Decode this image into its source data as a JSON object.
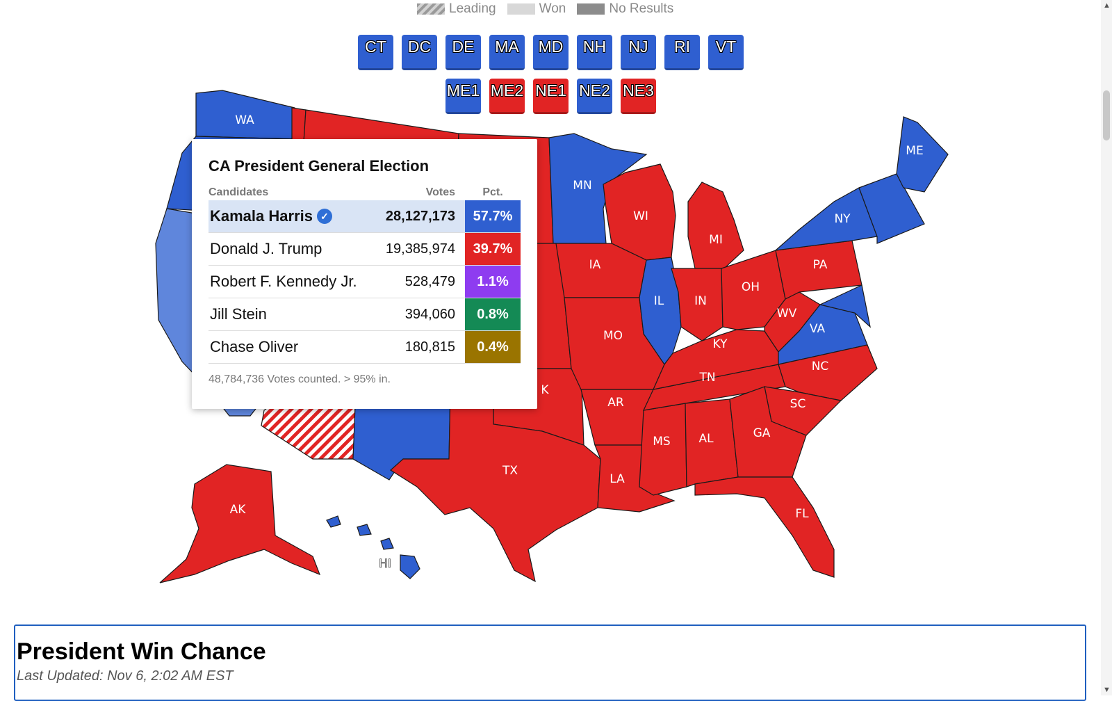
{
  "legend": {
    "leading": "Leading",
    "won": "Won",
    "no_results": "No Results"
  },
  "buttons_row1": [
    {
      "label": "CT",
      "party": "blue"
    },
    {
      "label": "DC",
      "party": "blue"
    },
    {
      "label": "DE",
      "party": "blue"
    },
    {
      "label": "MA",
      "party": "blue"
    },
    {
      "label": "MD",
      "party": "blue"
    },
    {
      "label": "NH",
      "party": "blue"
    },
    {
      "label": "NJ",
      "party": "blue"
    },
    {
      "label": "RI",
      "party": "blue"
    },
    {
      "label": "VT",
      "party": "blue"
    }
  ],
  "buttons_row2": [
    {
      "label": "ME1",
      "party": "blue"
    },
    {
      "label": "ME2",
      "party": "red"
    },
    {
      "label": "NE1",
      "party": "red"
    },
    {
      "label": "NE2",
      "party": "blue"
    },
    {
      "label": "NE3",
      "party": "red"
    }
  ],
  "map_labels": {
    "WA": "WA",
    "MN": "MN",
    "WI": "WI",
    "MI": "MI",
    "IA": "IA",
    "IL": "IL",
    "IN": "IN",
    "OH": "OH",
    "PA": "PA",
    "NY": "NY",
    "ME": "ME",
    "WV": "WV",
    "VA": "VA",
    "KY": "KY",
    "MO": "MO",
    "TN": "TN",
    "NC": "NC",
    "SC": "SC",
    "GA": "GA",
    "AL": "AL",
    "MS": "MS",
    "AR": "AR",
    "LA": "LA",
    "TX": "TX",
    "FL": "FL",
    "AK": "AK",
    "HI": "HI",
    "OK": "K"
  },
  "popup": {
    "title": "CA President General Election",
    "col_candidates": "Candidates",
    "col_votes": "Votes",
    "col_pct": "Pct.",
    "candidates": [
      {
        "name": "Kamala Harris",
        "votes": "28,127,173",
        "pct": "57.7%",
        "color": "#2f5fd0",
        "winner": true
      },
      {
        "name": "Donald J. Trump",
        "votes": "19,385,974",
        "pct": "39.7%",
        "color": "#e12424",
        "winner": false
      },
      {
        "name": "Robert F. Kennedy Jr.",
        "votes": "528,479",
        "pct": "1.1%",
        "color": "#8e3cf0",
        "winner": false
      },
      {
        "name": "Jill Stein",
        "votes": "394,060",
        "pct": "0.8%",
        "color": "#148a55",
        "winner": false
      },
      {
        "name": "Chase Oliver",
        "votes": "180,815",
        "pct": "0.4%",
        "color": "#9a7400",
        "winner": false
      }
    ],
    "footer": "48,784,736 Votes counted. > 95% in."
  },
  "win_panel": {
    "title": "President Win Chance",
    "updated": "Last Updated: Nov 6, 2:02 AM EST"
  },
  "colors": {
    "democrat": "#2f5fd0",
    "republican": "#e12424",
    "lean_blue": "#5f86dc"
  }
}
